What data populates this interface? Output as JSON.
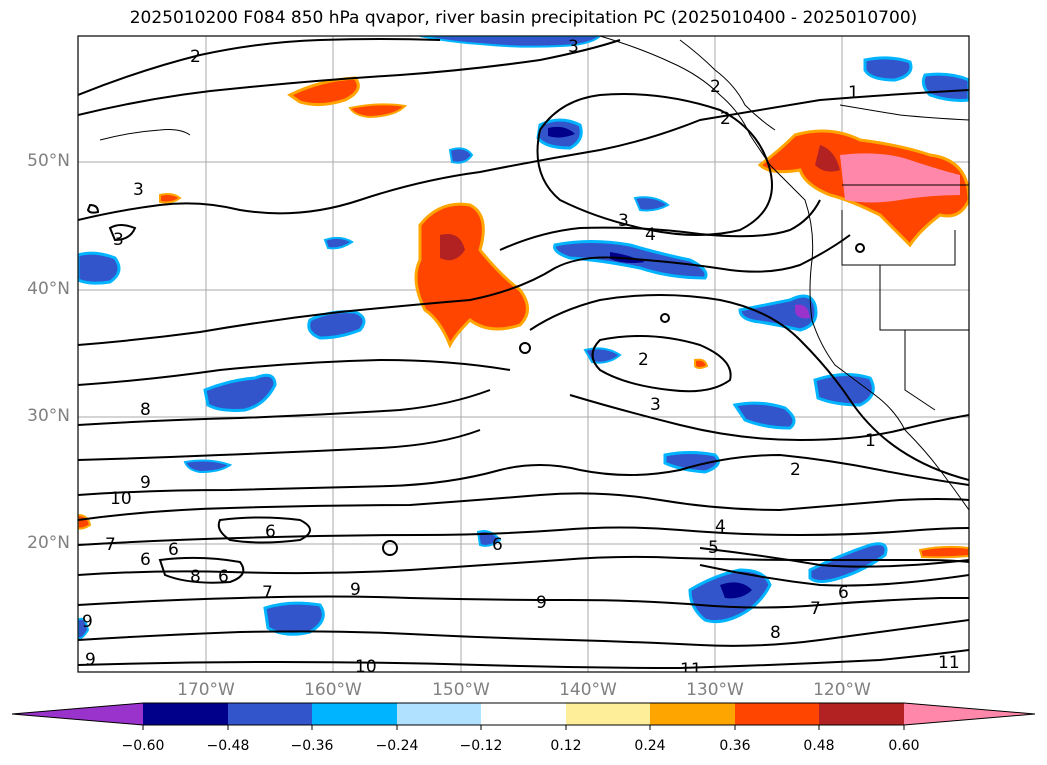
{
  "title": "2025010200 F084 850 hPa qvapor, river basin precipitation PC (2025010400 - 2025010700)",
  "lat_labels": [
    "50°N",
    "40°N",
    "30°N",
    "20°N"
  ],
  "lon_labels": [
    "170°W",
    "160°W",
    "150°W",
    "140°W",
    "130°W",
    "120°W"
  ],
  "contour_labels": [
    "2",
    "3",
    "2",
    "2",
    "1",
    "3",
    "3",
    "3",
    "4",
    "2",
    "3",
    "1",
    "2",
    "4",
    "5",
    "8",
    "10",
    "9",
    "7",
    "6",
    "6",
    "8",
    "6",
    "6",
    "7",
    "9",
    "6",
    "9",
    "9",
    "10",
    "11",
    "11",
    "6",
    "7",
    "8",
    "9"
  ],
  "colorbar": {
    "tick_labels": [
      "−0.60",
      "−0.48",
      "−0.36",
      "−0.24",
      "−0.12",
      "0.12",
      "0.24",
      "0.36",
      "0.48",
      "0.60"
    ],
    "colors": [
      "#9933cc",
      "#00008b",
      "#3355cc",
      "#00b4ff",
      "#b0e2ff",
      "#ffffff",
      "#ffee99",
      "#ffa500",
      "#ff4500",
      "#b22222",
      "#ff88aa"
    ]
  }
}
